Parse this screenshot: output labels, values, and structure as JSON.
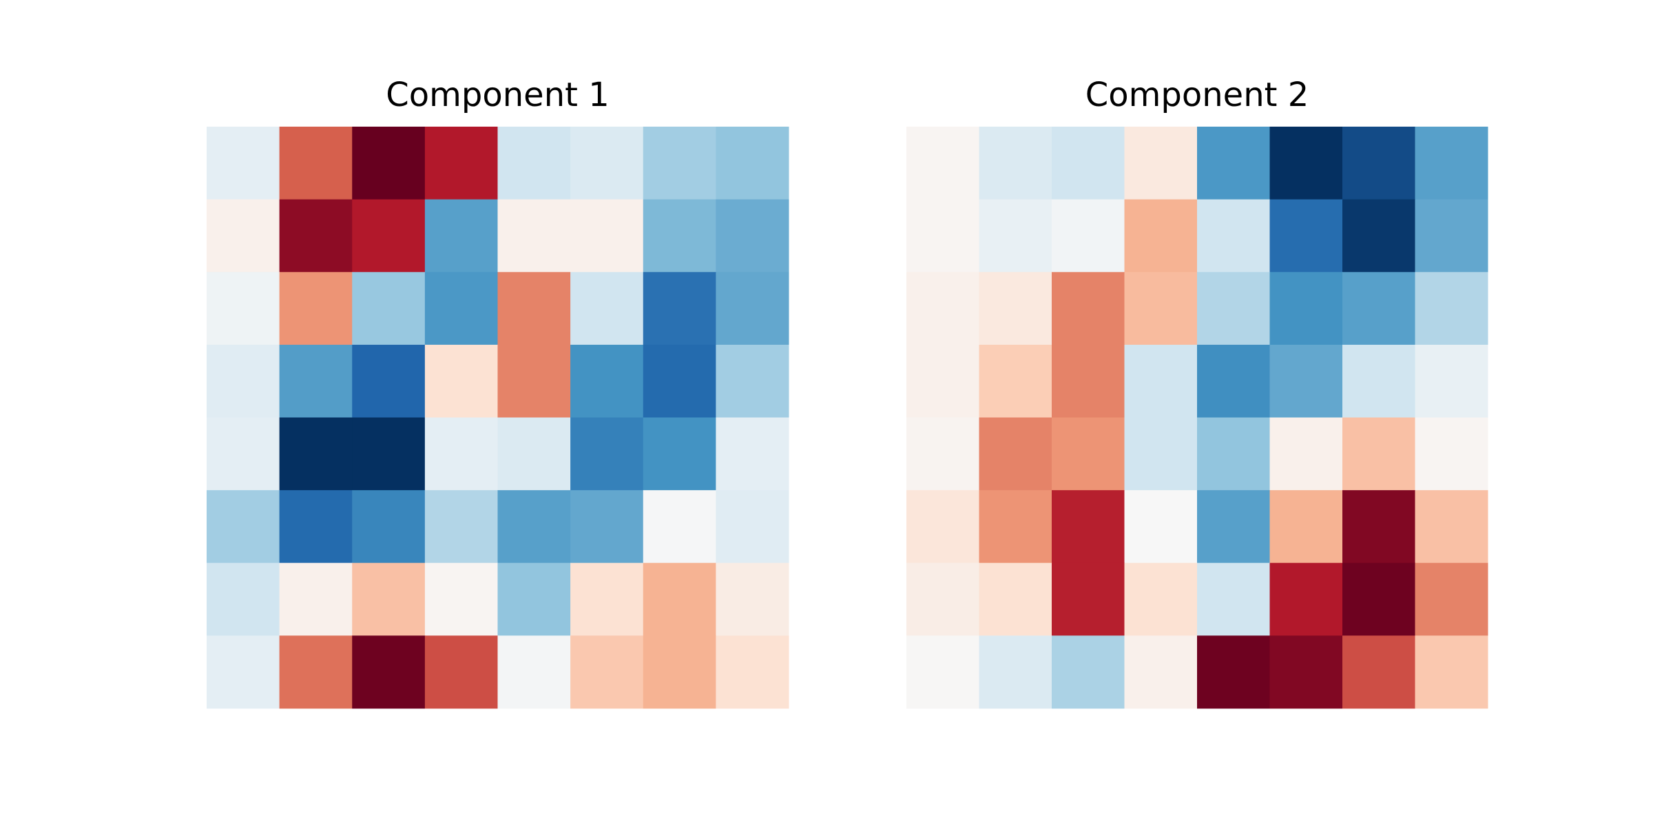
{
  "chart_data": [
    {
      "type": "heatmap",
      "title": "Component 1",
      "colormap": "RdBu_r",
      "zlim": [
        -1,
        1
      ],
      "z": [
        [
          -0.1,
          0.6,
          1.0,
          0.8,
          -0.2,
          -0.15,
          -0.35,
          -0.4
        ],
        [
          0.05,
          0.9,
          0.8,
          -0.55,
          0.05,
          0.05,
          -0.45,
          -0.5
        ],
        [
          -0.05,
          0.45,
          -0.38,
          -0.58,
          0.5,
          -0.2,
          -0.75,
          -0.52
        ],
        [
          -0.12,
          -0.56,
          -0.8,
          0.15,
          0.5,
          -0.6,
          -0.78,
          -0.35
        ],
        [
          -0.1,
          -1.0,
          -1.0,
          -0.1,
          -0.15,
          -0.68,
          -0.6,
          -0.1
        ],
        [
          -0.35,
          -0.78,
          -0.66,
          -0.3,
          -0.55,
          -0.52,
          -0.01,
          -0.12
        ],
        [
          -0.2,
          0.05,
          0.3,
          0.02,
          -0.4,
          0.15,
          0.35,
          0.08
        ],
        [
          -0.1,
          0.55,
          0.98,
          0.65,
          -0.02,
          0.27,
          0.35,
          0.15
        ]
      ]
    },
    {
      "type": "heatmap",
      "title": "Component 2",
      "colormap": "RdBu_r",
      "zlim": [
        -1,
        1
      ],
      "z": [
        [
          0.02,
          -0.15,
          -0.2,
          0.1,
          -0.58,
          -1.0,
          -0.9,
          -0.55
        ],
        [
          0.02,
          -0.08,
          -0.03,
          0.35,
          -0.2,
          -0.77,
          -0.97,
          -0.52
        ],
        [
          0.05,
          0.1,
          0.5,
          0.32,
          -0.3,
          -0.6,
          -0.55,
          -0.3
        ],
        [
          0.05,
          0.25,
          0.5,
          -0.2,
          -0.62,
          -0.52,
          -0.2,
          -0.08
        ],
        [
          0.03,
          0.5,
          0.45,
          -0.2,
          -0.4,
          0.05,
          0.3,
          0.02
        ],
        [
          0.12,
          0.45,
          0.78,
          0,
          -0.55,
          0.35,
          0.93,
          0.3
        ],
        [
          0.07,
          0.15,
          0.78,
          0.15,
          -0.2,
          0.8,
          0.98,
          0.5
        ],
        [
          0.01,
          -0.15,
          -0.32,
          0.05,
          0.98,
          0.93,
          0.65,
          0.27
        ]
      ]
    }
  ]
}
